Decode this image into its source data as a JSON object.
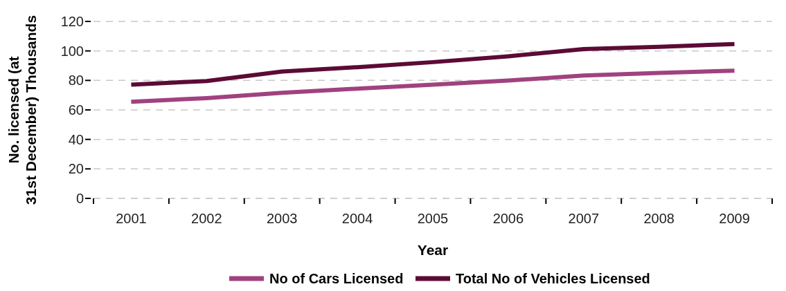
{
  "chart_data": {
    "type": "line",
    "xlabel": "Year",
    "ylabel": "No. licensed (at 31st December) Thousands",
    "categories": [
      "2001",
      "2002",
      "2003",
      "2004",
      "2005",
      "2006",
      "2007",
      "2008",
      "2009"
    ],
    "series": [
      {
        "name": "No of Cars Licensed",
        "color": "#a0427f",
        "values": [
          65.5,
          68,
          71.6,
          74.4,
          77.1,
          79.9,
          83.3,
          85.1,
          86.6
        ]
      },
      {
        "name": "Total No of Vehicles Licensed",
        "color": "#5c0a36",
        "values": [
          77.1,
          79.6,
          86,
          89,
          92.4,
          96.3,
          101.3,
          102.8,
          104.7
        ]
      }
    ],
    "ylim": [
      0,
      120
    ],
    "yticks": [
      0,
      20,
      40,
      60,
      80,
      100,
      120
    ],
    "grid": "y",
    "legend": "bottom",
    "line_style": "solid",
    "marker": "none"
  }
}
